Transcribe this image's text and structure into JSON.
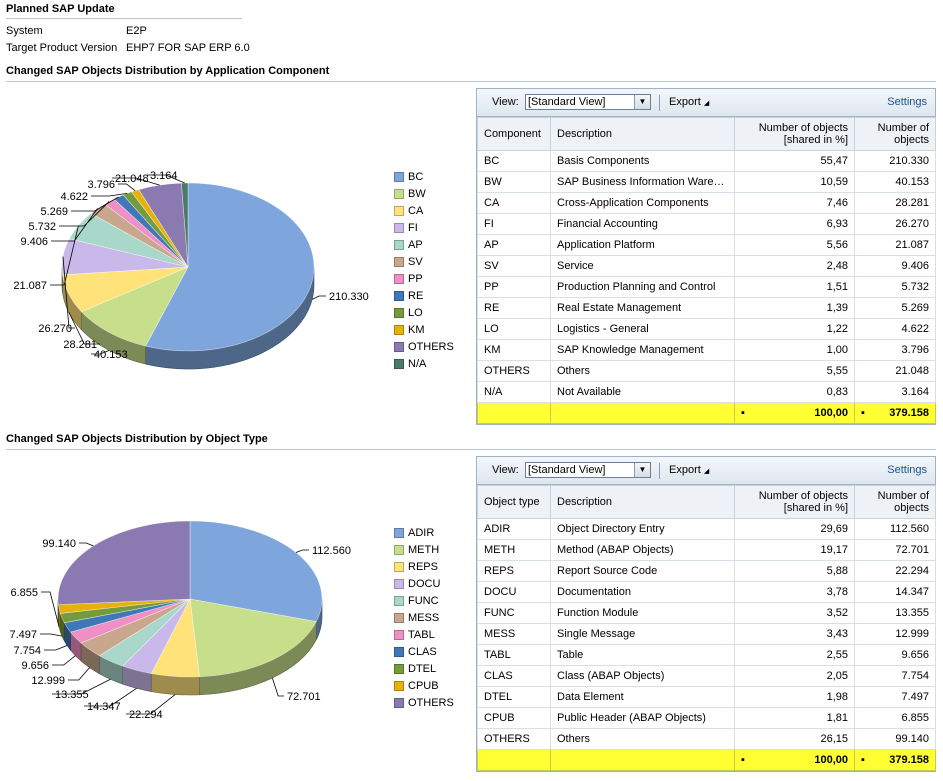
{
  "header": {
    "title": "Planned SAP Update",
    "system_label": "System",
    "system_value": "E2P",
    "tpv_label": "Target Product Version",
    "tpv_value": "EHP7 FOR SAP ERP 6.0"
  },
  "toolbar": {
    "view_label": "View:",
    "view_value": "[Standard View]",
    "export_label": "Export",
    "settings_label": "Settings"
  },
  "section1": {
    "title": "Changed SAP Objects Distribution by Application Component",
    "columns": [
      "Component",
      "Description",
      "Number of objects [shared in %]",
      "Number of objects"
    ],
    "rows": [
      [
        "BC",
        "Basis Components",
        "55,47",
        "210.330"
      ],
      [
        "BW",
        "SAP Business Information Wareh...",
        "10,59",
        "40.153"
      ],
      [
        "CA",
        "Cross-Application Components",
        "7,46",
        "28.281"
      ],
      [
        "FI",
        "Financial Accounting",
        "6,93",
        "26.270"
      ],
      [
        "AP",
        "Application Platform",
        "5,56",
        "21.087"
      ],
      [
        "SV",
        "Service",
        "2,48",
        "9.406"
      ],
      [
        "PP",
        "Production Planning and Control",
        "1,51",
        "5.732"
      ],
      [
        "RE",
        "Real Estate Management",
        "1,39",
        "5.269"
      ],
      [
        "LO",
        "Logistics - General",
        "1,22",
        "4.622"
      ],
      [
        "KM",
        "SAP Knowledge Management",
        "1,00",
        "3.796"
      ],
      [
        "OTHERS",
        "Others",
        "5,55",
        "21.048"
      ],
      [
        "N/A",
        "Not Available",
        "0,83",
        "3.164"
      ]
    ],
    "total": [
      "",
      "",
      "100,00",
      "379.158"
    ]
  },
  "section2": {
    "title": "Changed SAP Objects Distribution by Object Type",
    "columns": [
      "Object type",
      "Description",
      "Number of objects [shared in %]",
      "Number of objects"
    ],
    "rows": [
      [
        "ADIR",
        "Object Directory Entry",
        "29,69",
        "112.560"
      ],
      [
        "METH",
        "Method (ABAP Objects)",
        "19,17",
        "72.701"
      ],
      [
        "REPS",
        "Report Source Code",
        "5,88",
        "22.294"
      ],
      [
        "DOCU",
        "Documentation",
        "3,78",
        "14.347"
      ],
      [
        "FUNC",
        "Function Module",
        "3,52",
        "13.355"
      ],
      [
        "MESS",
        "Single Message",
        "3,43",
        "12.999"
      ],
      [
        "TABL",
        "Table",
        "2,55",
        "9.656"
      ],
      [
        "CLAS",
        "Class (ABAP Objects)",
        "2,05",
        "7.754"
      ],
      [
        "DTEL",
        "Data Element",
        "1,98",
        "7.497"
      ],
      [
        "CPUB",
        "Public Header (ABAP Objects)",
        "1,81",
        "6.855"
      ],
      [
        "OTHERS",
        "Others",
        "26,15",
        "99.140"
      ]
    ],
    "total": [
      "",
      "",
      "100,00",
      "379.158"
    ]
  },
  "chart_data": [
    {
      "type": "pie",
      "categories": [
        "BC",
        "BW",
        "CA",
        "FI",
        "AP",
        "SV",
        "PP",
        "RE",
        "LO",
        "KM",
        "OTHERS",
        "N/A"
      ],
      "values": [
        210330,
        40153,
        28281,
        26270,
        21087,
        9406,
        5732,
        5269,
        4622,
        3796,
        21048,
        3164
      ],
      "data_labels": [
        "210.330",
        "40.153",
        "28.281",
        "26.270",
        "21.087",
        "9.406",
        "5.732",
        "5.269",
        "4.622",
        "3.796",
        "21.048",
        "3.164"
      ],
      "colors": [
        "#7ea6dd",
        "#c7df8a",
        "#ffe27a",
        "#c9b8ea",
        "#a9d7c9",
        "#c9a68e",
        "#ee8fc6",
        "#3f78b8",
        "#759b3f",
        "#e6b10d",
        "#8a7ab1",
        "#4a7b6a"
      ],
      "legend_position": "right"
    },
    {
      "type": "pie",
      "categories": [
        "ADIR",
        "METH",
        "REPS",
        "DOCU",
        "FUNC",
        "MESS",
        "TABL",
        "CLAS",
        "DTEL",
        "CPUB",
        "OTHERS"
      ],
      "values": [
        112560,
        72701,
        22294,
        14347,
        13355,
        12999,
        9656,
        7754,
        7497,
        6855,
        99140
      ],
      "data_labels": [
        "112.560",
        "72.701",
        "22.294",
        "14.347",
        "13.355",
        "12.999",
        "9.656",
        "7.754",
        "7.497",
        "6.855",
        "99.140"
      ],
      "colors": [
        "#7ea6dd",
        "#c7df8a",
        "#ffe27a",
        "#c9b8ea",
        "#a9d7c9",
        "#c9a68e",
        "#ee8fc6",
        "#3f78b8",
        "#759b3f",
        "#e6b10d",
        "#8a7ab1"
      ],
      "legend_position": "right"
    }
  ]
}
